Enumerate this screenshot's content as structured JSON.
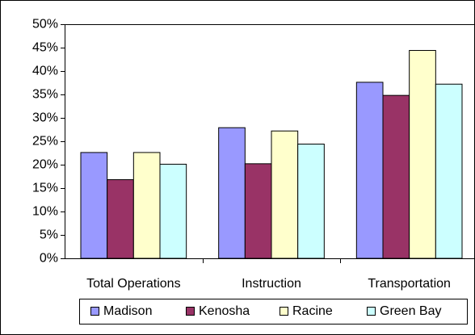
{
  "chart_data": {
    "type": "bar",
    "categories": [
      "Total Operations",
      "Instruction",
      "Transportation"
    ],
    "series": [
      {
        "name": "Madison",
        "color": "#9999ff",
        "values": [
          22.6,
          27.9,
          37.6
        ]
      },
      {
        "name": "Kenosha",
        "color": "#993366",
        "values": [
          16.8,
          20.2,
          34.8
        ]
      },
      {
        "name": "Racine",
        "color": "#ffffcc",
        "values": [
          22.6,
          27.2,
          44.4
        ]
      },
      {
        "name": "Green Bay",
        "color": "#ccffff",
        "values": [
          20.1,
          24.4,
          37.2
        ]
      }
    ],
    "ylim": [
      0,
      50
    ],
    "yticks": [
      {
        "value": 0,
        "label": "0%"
      },
      {
        "value": 5,
        "label": "5%"
      },
      {
        "value": 10,
        "label": "10%"
      },
      {
        "value": 15,
        "label": "15%"
      },
      {
        "value": 20,
        "label": "20%"
      },
      {
        "value": 25,
        "label": "25%"
      },
      {
        "value": 30,
        "label": "30%"
      },
      {
        "value": 35,
        "label": "35%"
      },
      {
        "value": 40,
        "label": "40%"
      },
      {
        "value": 45,
        "label": "45%"
      },
      {
        "value": 50,
        "label": "50%"
      }
    ],
    "grid": false,
    "legend": "bottom"
  }
}
